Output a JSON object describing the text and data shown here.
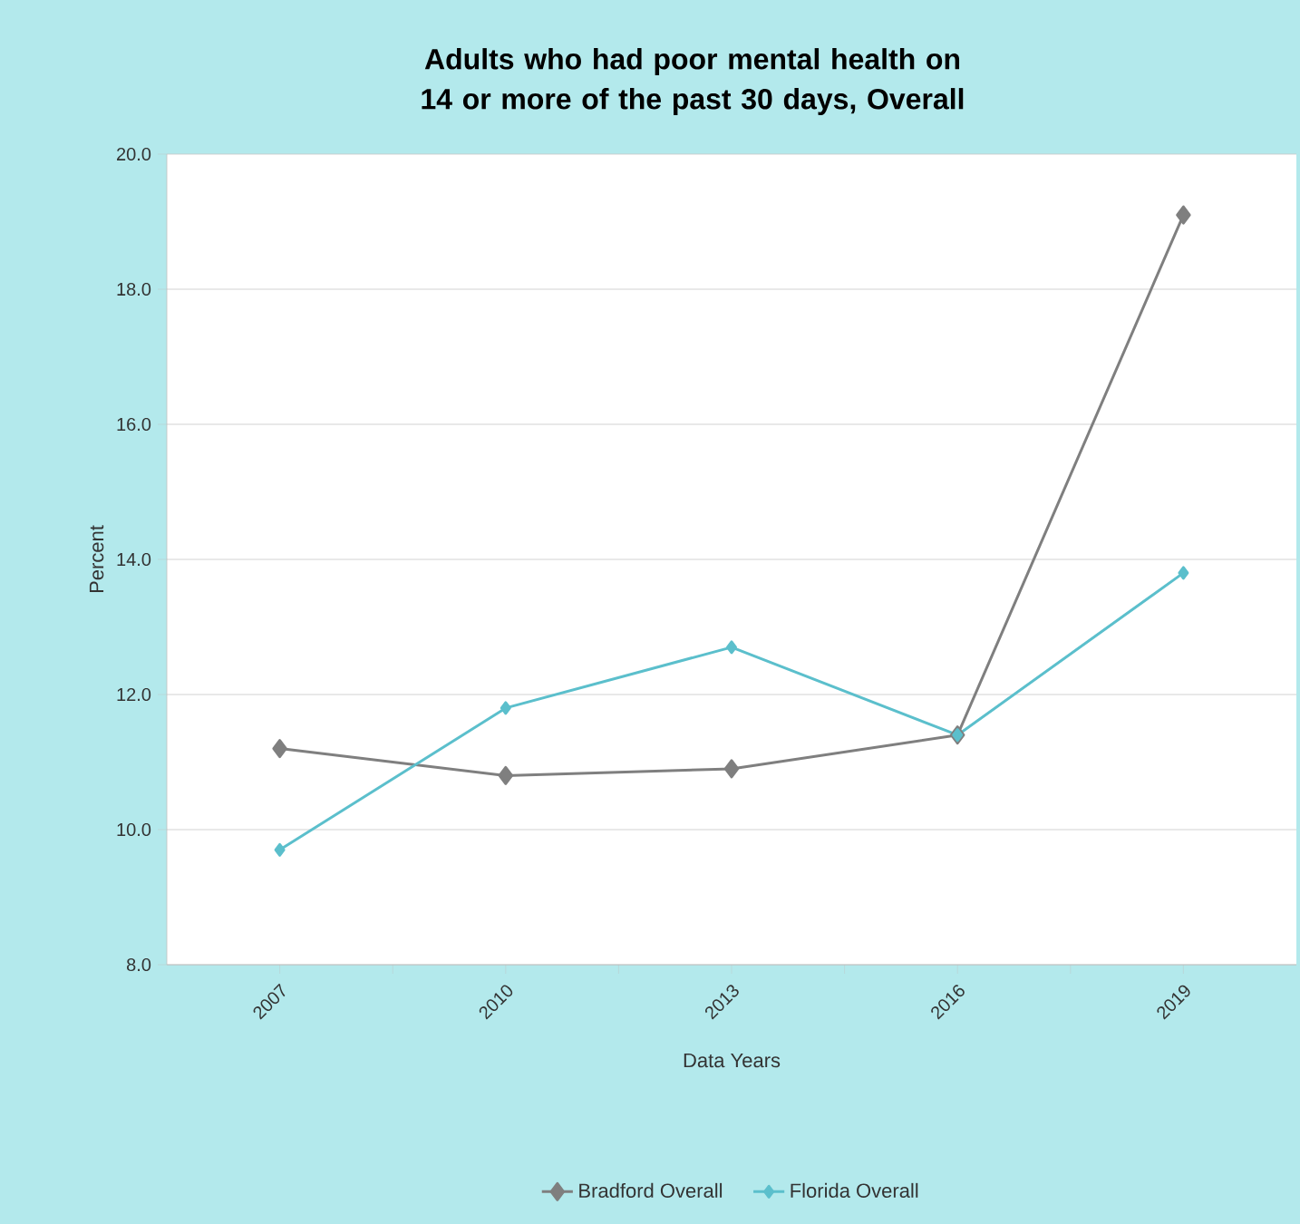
{
  "chart_data": {
    "type": "line",
    "title": "Adults who had poor mental health on 14 or more of the past 30 days, Overall",
    "xlabel": "Data Years",
    "ylabel": "Percent",
    "categories": [
      "2007",
      "2010",
      "2013",
      "2016",
      "2019"
    ],
    "series": [
      {
        "name": "Bradford Overall",
        "color": "#7f7f7f",
        "values": [
          11.2,
          10.8,
          10.9,
          11.4,
          19.1
        ]
      },
      {
        "name": "Florida Overall",
        "color": "#5bbfcc",
        "values": [
          9.7,
          11.8,
          12.7,
          11.4,
          13.8
        ]
      }
    ],
    "ylim": [
      8,
      20
    ],
    "yticks": [
      {
        "value": 8,
        "label": "8.0"
      },
      {
        "value": 10,
        "label": "10.0"
      },
      {
        "value": 12,
        "label": "12.0"
      },
      {
        "value": 14,
        "label": "14.0"
      },
      {
        "value": 16,
        "label": "16.0"
      },
      {
        "value": 18,
        "label": "18.0"
      },
      {
        "value": 20,
        "label": "20.0"
      }
    ],
    "grid": "y",
    "legend": "bottom",
    "marker": "diamond",
    "line_style": "solid"
  }
}
